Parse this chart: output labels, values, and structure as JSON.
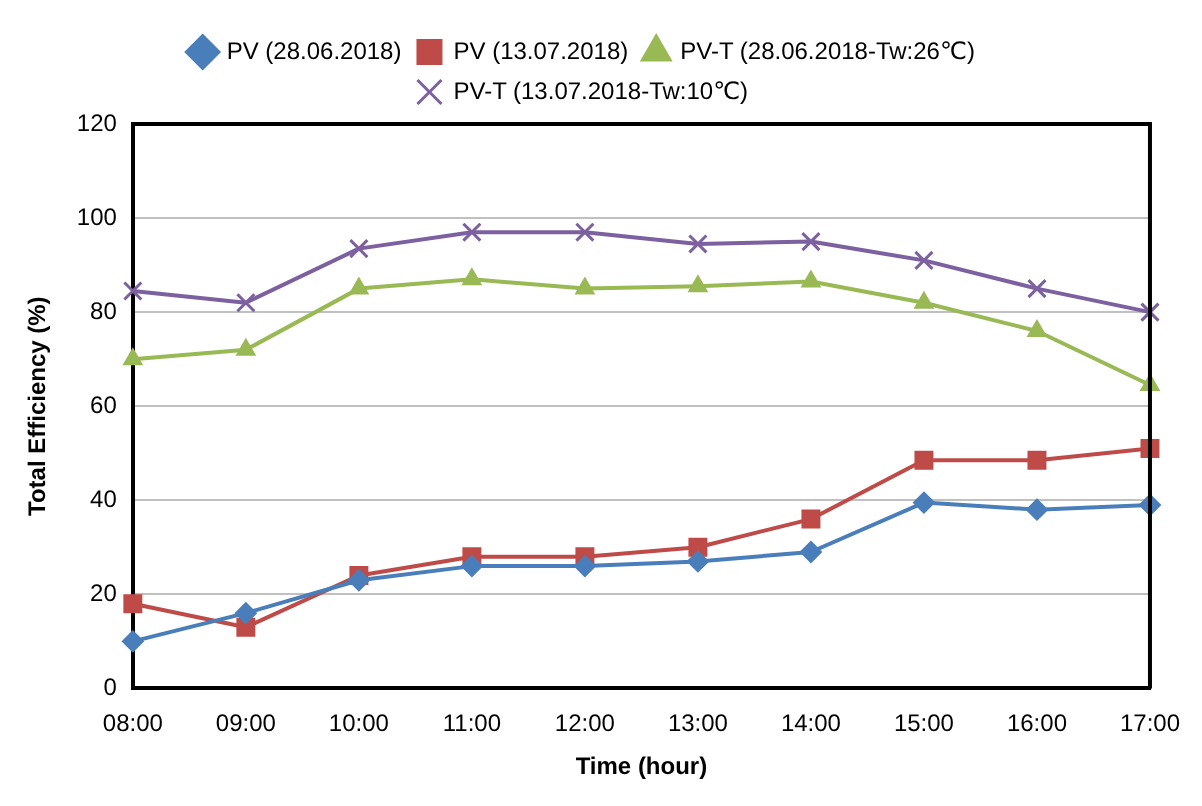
{
  "chart_data": {
    "type": "line",
    "xlabel": "Time (hour)",
    "ylabel": "Total Efficiency (%)",
    "categories": [
      "08:00",
      "09:00",
      "10:00",
      "11:00",
      "12:00",
      "13:00",
      "14:00",
      "15:00",
      "16:00",
      "17:00"
    ],
    "series": [
      {
        "name": "PV (28.06.2018)",
        "color": "#4a7ebb",
        "marker": "diamond",
        "values": [
          10,
          16,
          23,
          26,
          26,
          27,
          29,
          39.5,
          38,
          39
        ]
      },
      {
        "name": "PV (13.07.2018)",
        "color": "#be4b48",
        "marker": "square",
        "values": [
          18,
          13,
          24,
          28,
          28,
          30,
          36,
          48.5,
          48.5,
          51
        ]
      },
      {
        "name": "PV-T (28.06.2018-Tw:26℃)",
        "color": "#98b954",
        "marker": "triangle",
        "values": [
          70,
          72,
          85,
          87,
          85,
          85.5,
          86.5,
          82,
          76,
          64.5
        ]
      },
      {
        "name": "PV-T (13.07.2018-Tw:10℃)",
        "color": "#7d60a0",
        "marker": "cross",
        "values": [
          84.5,
          82,
          93.5,
          97,
          97,
          94.5,
          95,
          91,
          85,
          80
        ]
      }
    ],
    "ylim": [
      0,
      120
    ],
    "yticks": [
      0,
      20,
      40,
      60,
      80,
      100,
      120
    ],
    "grid": "y",
    "legend": "top"
  }
}
